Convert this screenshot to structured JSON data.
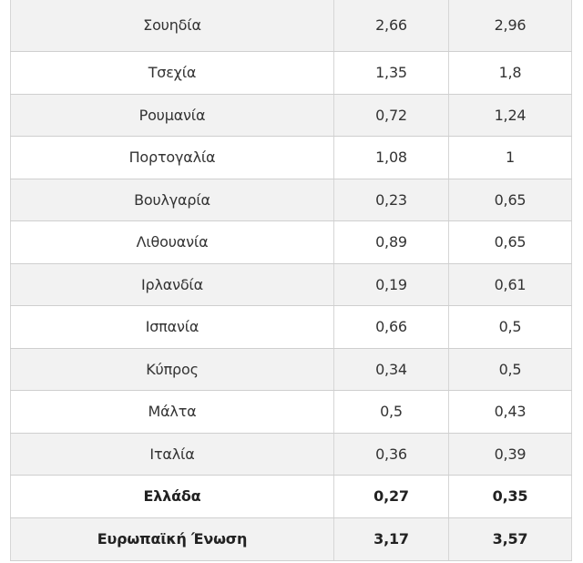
{
  "table": {
    "rows": [
      {
        "country": "Σουηδία",
        "v1": "2,66",
        "v2": "2,96",
        "bold": false
      },
      {
        "country": "Τσεχία",
        "v1": "1,35",
        "v2": "1,8",
        "bold": false
      },
      {
        "country": "Ρουμανία",
        "v1": "0,72",
        "v2": "1,24",
        "bold": false
      },
      {
        "country": "Πορτογαλία",
        "v1": "1,08",
        "v2": "1",
        "bold": false
      },
      {
        "country": "Βουλγαρία",
        "v1": "0,23",
        "v2": "0,65",
        "bold": false
      },
      {
        "country": "Λιθουανία",
        "v1": "0,89",
        "v2": "0,65",
        "bold": false
      },
      {
        "country": "Ιρλανδία",
        "v1": "0,19",
        "v2": "0,61",
        "bold": false
      },
      {
        "country": "Ισπανία",
        "v1": "0,66",
        "v2": "0,5",
        "bold": false
      },
      {
        "country": "Κύπρος",
        "v1": "0,34",
        "v2": "0,5",
        "bold": false
      },
      {
        "country": "Μάλτα",
        "v1": "0,5",
        "v2": "0,43",
        "bold": false
      },
      {
        "country": "Ιταλία",
        "v1": "0,36",
        "v2": "0,39",
        "bold": false
      },
      {
        "country": "Ελλάδα",
        "v1": "0,27",
        "v2": "0,35",
        "bold": true
      },
      {
        "country": "Ευρωπαϊκή Ένωση",
        "v1": "3,17",
        "v2": "3,57",
        "bold": true
      }
    ]
  }
}
